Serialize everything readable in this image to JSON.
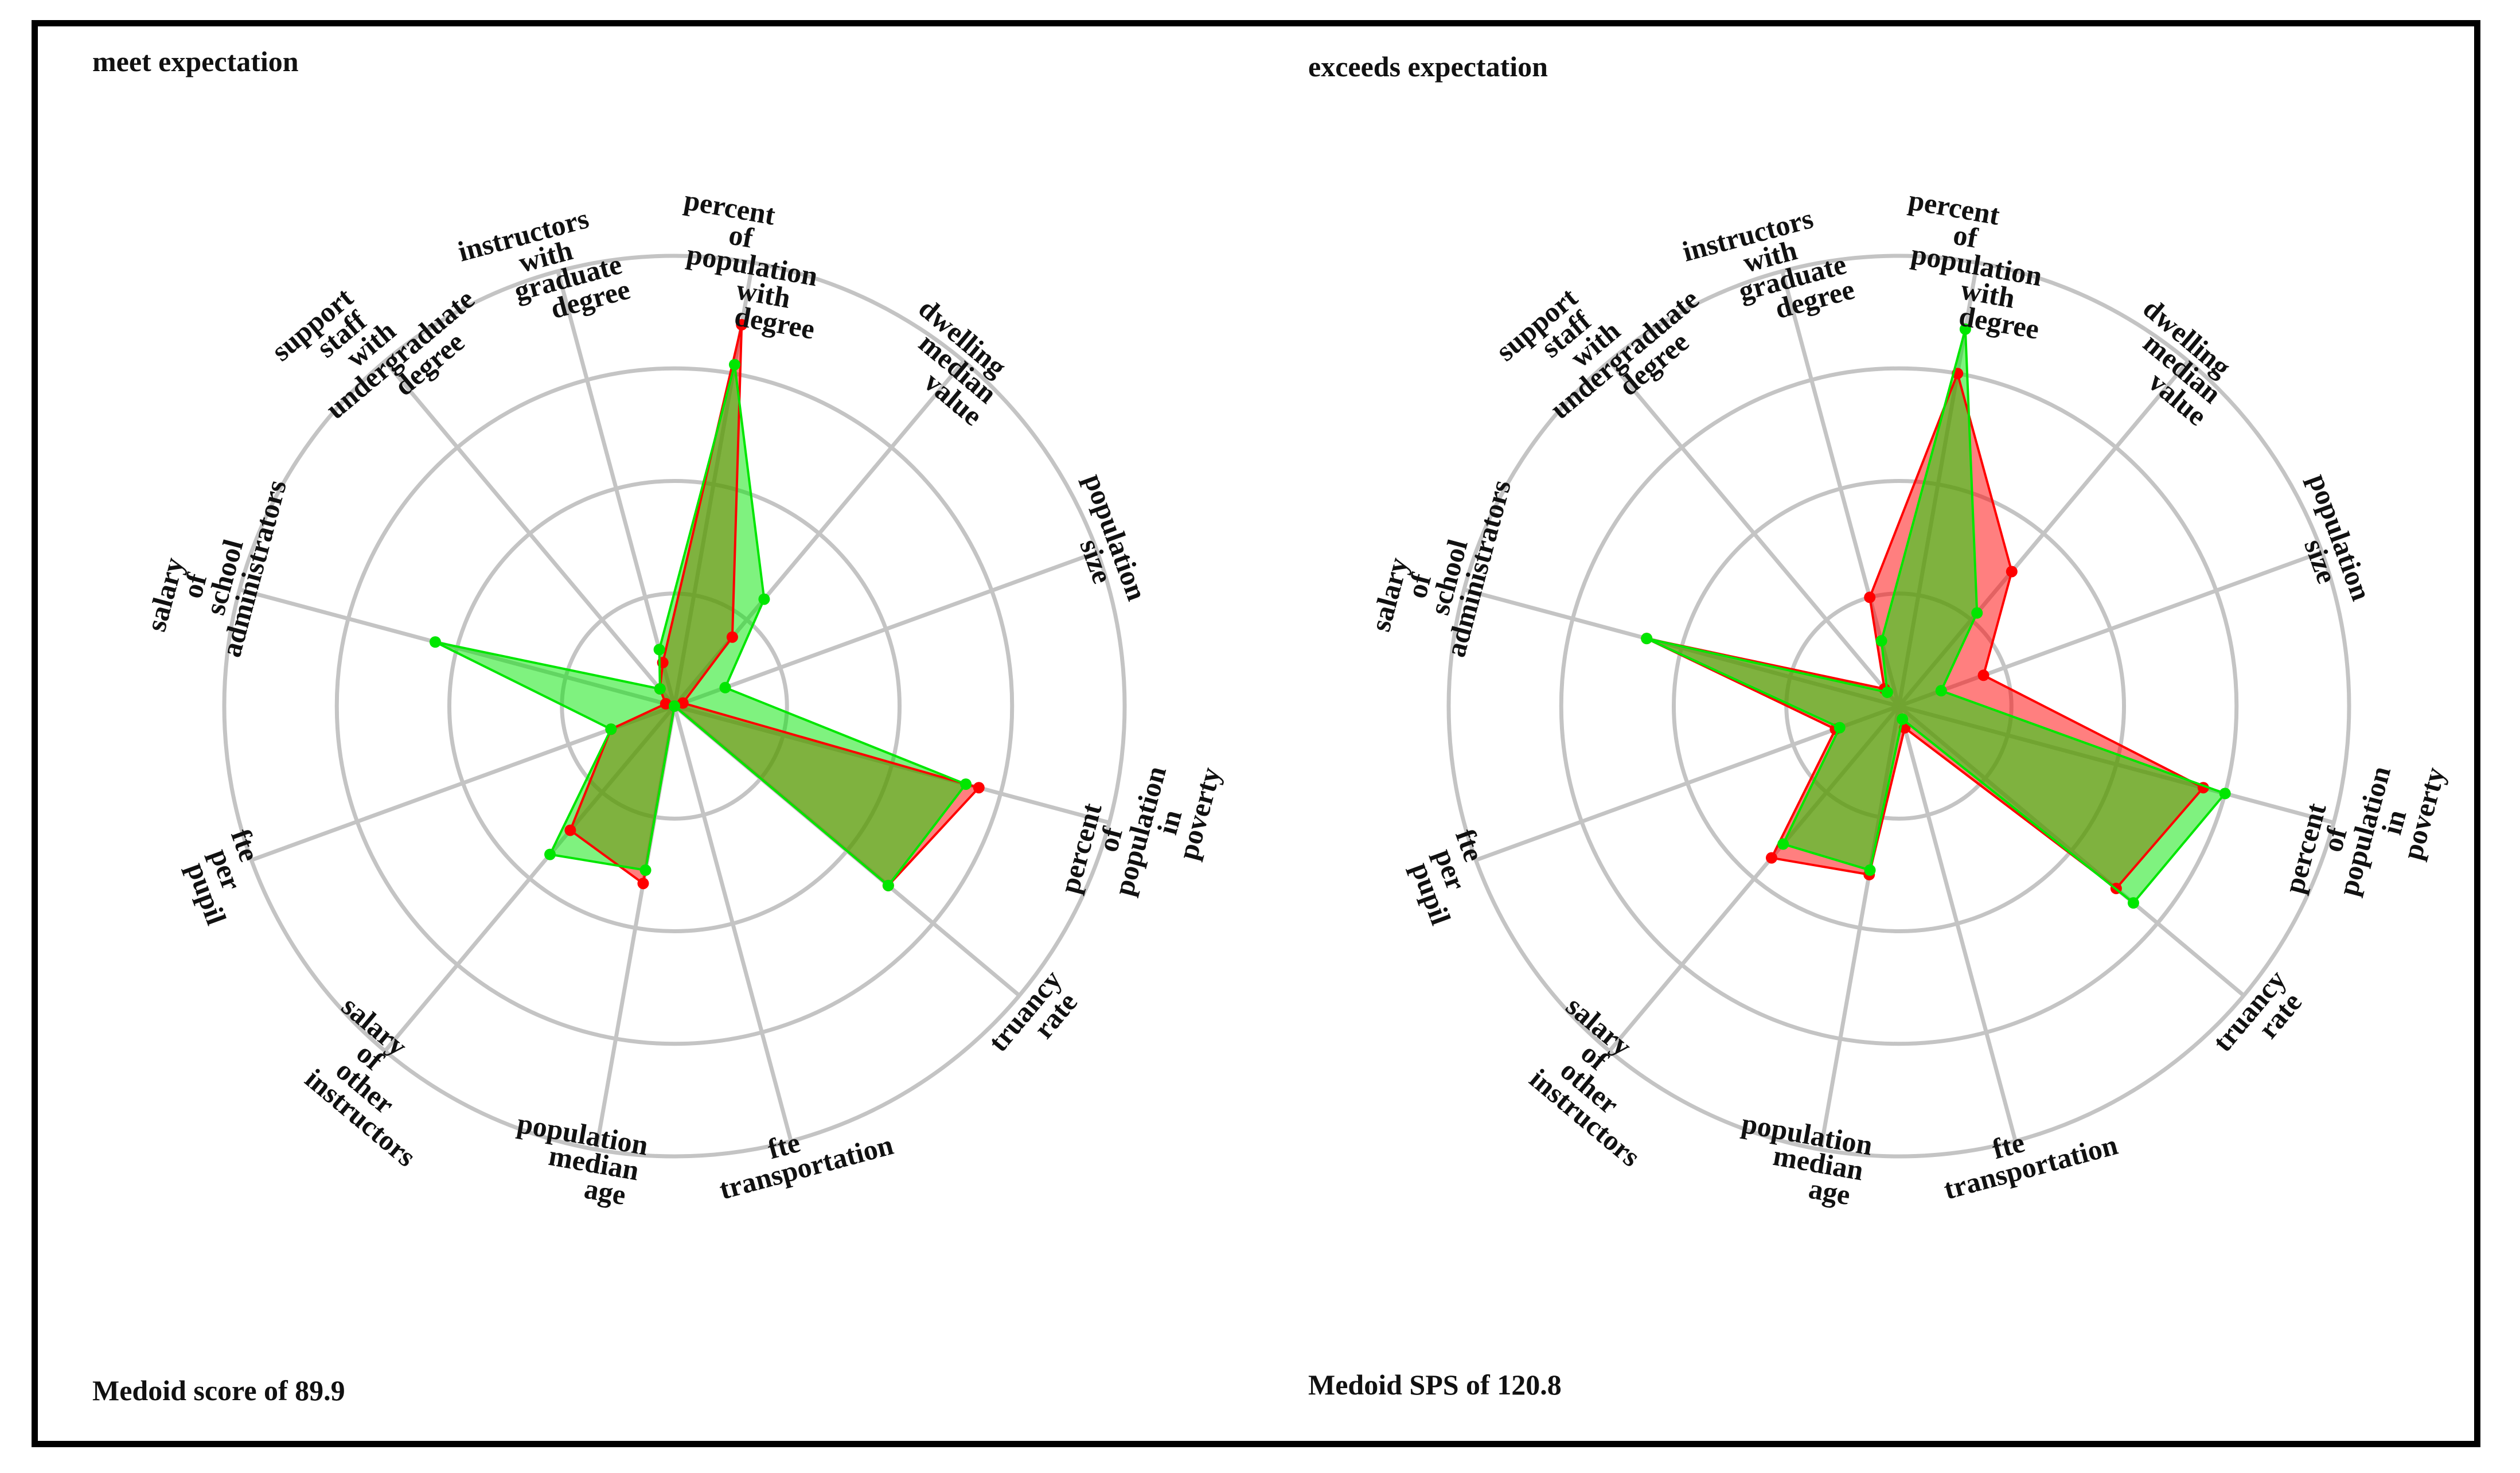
{
  "colors": {
    "grid": "#c4c4c4",
    "series_a": "#ff0000",
    "series_b": "#00e600",
    "overlap": "#b5773d"
  },
  "chart_data": [
    {
      "type": "radar",
      "title": "meet expectation",
      "footer": "Medoid score of 89.9",
      "rlim": [
        0,
        1
      ],
      "rings": 4,
      "axes": [
        {
          "label": [
            "percent",
            "of",
            "population",
            "with",
            "degree"
          ]
        },
        {
          "label": [
            "dwelling",
            "median",
            "value"
          ]
        },
        {
          "label": [
            "population",
            "size"
          ]
        },
        {
          "label": [
            "percent",
            "of",
            "population",
            "in",
            "poverty"
          ]
        },
        {
          "label": [
            "truancy",
            "rate"
          ]
        },
        {
          "label": [
            "fte",
            "transportation"
          ]
        },
        {
          "label": [
            "population",
            "median",
            "age"
          ]
        },
        {
          "label": [
            "salary",
            "of",
            "other",
            "instructors"
          ]
        },
        {
          "label": [
            "fte",
            "per",
            "pupil"
          ]
        },
        {
          "label": [
            "salary",
            "of",
            "school",
            "administrators"
          ]
        },
        {
          "label": [
            "support",
            "staff",
            "with",
            "undergraduate",
            "degree"
          ]
        },
        {
          "label": [
            "instructors",
            "with",
            "graduate",
            "degree"
          ]
        }
      ],
      "series": [
        {
          "name": "red",
          "color_key": "series_a",
          "values": [
            0.86,
            0.2,
            0.02,
            0.7,
            0.62,
            0.0,
            0.4,
            0.36,
            0.15,
            0.02,
            0.05,
            0.1
          ]
        },
        {
          "name": "green",
          "color_key": "series_b",
          "values": [
            0.77,
            0.31,
            0.12,
            0.67,
            0.62,
            0.0,
            0.37,
            0.43,
            0.15,
            0.55,
            0.05,
            0.13
          ]
        }
      ]
    },
    {
      "type": "radar",
      "title": "exceeds expectation",
      "footer": "Medoid SPS of 120.8",
      "rlim": [
        0,
        1
      ],
      "rings": 4,
      "axes": [
        {
          "label": [
            "percent",
            "of",
            "population",
            "with",
            "degree"
          ]
        },
        {
          "label": [
            "dwelling",
            "median",
            "value"
          ]
        },
        {
          "label": [
            "population",
            "size"
          ]
        },
        {
          "label": [
            "percent",
            "of",
            "population",
            "in",
            "poverty"
          ]
        },
        {
          "label": [
            "truancy",
            "rate"
          ]
        },
        {
          "label": [
            "fte",
            "transportation"
          ]
        },
        {
          "label": [
            "population",
            "median",
            "age"
          ]
        },
        {
          "label": [
            "salary",
            "of",
            "other",
            "instructors"
          ]
        },
        {
          "label": [
            "fte",
            "per",
            "pupil"
          ]
        },
        {
          "label": [
            "salary",
            "of",
            "school",
            "administrators"
          ]
        },
        {
          "label": [
            "support",
            "staff",
            "with",
            "undergraduate",
            "degree"
          ]
        },
        {
          "label": [
            "instructors",
            "with",
            "graduate",
            "degree"
          ]
        }
      ],
      "series": [
        {
          "name": "red",
          "color_key": "series_a",
          "values": [
            0.75,
            0.39,
            0.2,
            0.7,
            0.63,
            0.05,
            0.38,
            0.44,
            0.15,
            0.58,
            0.05,
            0.25
          ]
        },
        {
          "name": "green",
          "color_key": "series_b",
          "values": [
            0.85,
            0.27,
            0.1,
            0.75,
            0.68,
            0.03,
            0.37,
            0.4,
            0.14,
            0.58,
            0.04,
            0.15
          ]
        }
      ]
    }
  ]
}
